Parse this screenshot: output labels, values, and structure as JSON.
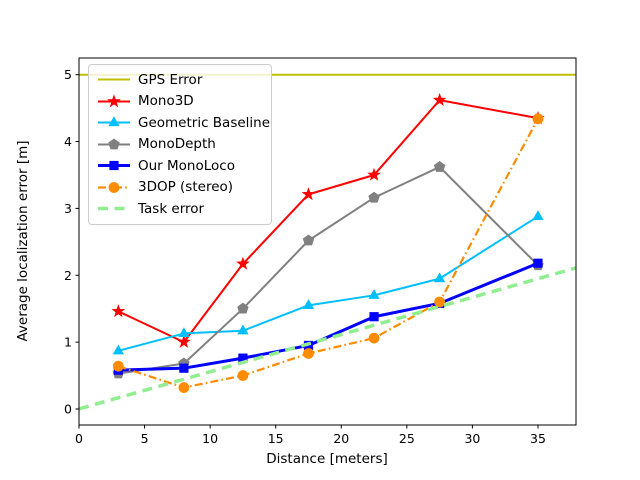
{
  "chart_data": {
    "type": "line",
    "title": "",
    "xlabel": "Distance [meters]",
    "ylabel": "Average localization error [m]",
    "xlim": [
      0,
      37.9
    ],
    "ylim": [
      -0.24,
      5.25
    ],
    "x_ticks": [
      0,
      5,
      10,
      15,
      20,
      25,
      30,
      35
    ],
    "y_ticks": [
      0,
      1,
      2,
      3,
      4,
      5
    ],
    "grid": false,
    "legend_position": "upper-left",
    "x": [
      3,
      8,
      12.5,
      17.5,
      22.5,
      27.5,
      35
    ],
    "series": [
      {
        "name": "GPS Error",
        "color": "#bfbf00",
        "line": "solid",
        "width": 2,
        "marker": "none",
        "x": [
          0,
          37.9
        ],
        "values": [
          5.0,
          5.0
        ]
      },
      {
        "name": "Mono3D",
        "color": "#ff0000",
        "line": "solid",
        "width": 2,
        "marker": "star",
        "values": [
          1.46,
          1.0,
          2.17,
          3.21,
          3.5,
          4.62,
          4.35
        ]
      },
      {
        "name": "Geometric Baseline",
        "color": "#00bfff",
        "line": "solid",
        "width": 2,
        "marker": "triangle",
        "values": [
          0.87,
          1.13,
          1.17,
          1.55,
          1.7,
          1.95,
          2.88
        ]
      },
      {
        "name": "MonoDepth",
        "color": "#808080",
        "line": "solid",
        "width": 2,
        "marker": "pentagon",
        "values": [
          0.53,
          0.68,
          1.5,
          2.52,
          3.16,
          3.62,
          2.15
        ]
      },
      {
        "name": "Our MonoLoco",
        "color": "#0000ff",
        "line": "solid",
        "width": 3,
        "marker": "square",
        "values": [
          0.58,
          0.61,
          0.76,
          0.95,
          1.38,
          1.58,
          2.18
        ]
      },
      {
        "name": "3DOP (stereo)",
        "color": "#ff8c00",
        "line": "dashdot",
        "width": 2.2,
        "marker": "circle",
        "values": [
          0.64,
          0.32,
          0.5,
          0.83,
          1.06,
          1.6,
          4.34
        ]
      },
      {
        "name": "Task error",
        "color": "#90ee90",
        "line": "dashed",
        "width": 3.5,
        "marker": "none",
        "x": [
          0,
          37.9
        ],
        "values": [
          0.0,
          2.11
        ]
      }
    ]
  }
}
